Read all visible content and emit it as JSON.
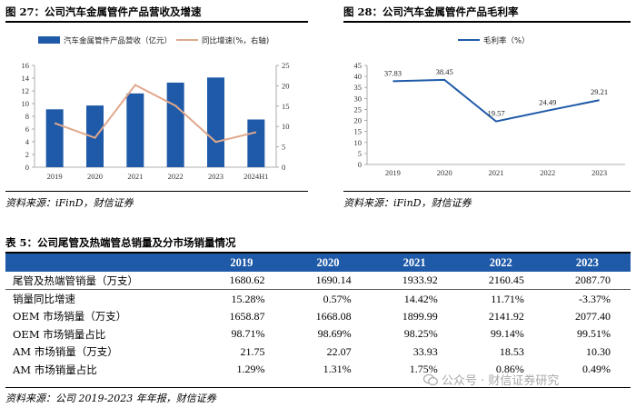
{
  "fig27": {
    "title": "图 27：公司汽车金属管件产品营收及增速",
    "source": "资料来源：iFinD，财信证券"
  },
  "fig28": {
    "title": "图 28：公司汽车金属管件产品毛利率",
    "source": "资料来源：iFinD，财信证券"
  },
  "table5": {
    "title": "表 5：公司尾管及热端管总销量及分市场销量情况",
    "header": [
      "",
      "2019",
      "2020",
      "2021",
      "2022",
      "2023"
    ],
    "rows": [
      [
        "尾管及热端管销量（万支）",
        "1680.62",
        "1690.14",
        "1933.92",
        "2160.45",
        "2087.70"
      ],
      [
        "销量同比增速",
        "15.28%",
        "0.57%",
        "14.42%",
        "11.71%",
        "-3.37%"
      ],
      [
        "OEM 市场销量（万支）",
        "1658.87",
        "1668.08",
        "1899.99",
        "2141.92",
        "2077.40"
      ],
      [
        "OEM 市场销量占比",
        "98.71%",
        "98.69%",
        "98.25%",
        "99.14%",
        "99.51%"
      ],
      [
        "AM 市场销量（万支）",
        "21.75",
        "22.07",
        "33.93",
        "18.53",
        "10.30"
      ],
      [
        "AM 市场销量占比",
        "1.29%",
        "1.31%",
        "1.75%",
        "0.86%",
        "0.49%"
      ]
    ],
    "source": "资料来源：公司 2019-2023 年年报，财信证券"
  },
  "watermark": "公众号 · 财信证券研究",
  "colors": {
    "bar": "#1f5aa8",
    "growth_line": "#e0a88c",
    "margin_line": "#1f5aa8",
    "header_bg": "#1f5aa8"
  },
  "chart_data": [
    {
      "type": "bar",
      "categories": [
        "2019",
        "2020",
        "2021",
        "2022",
        "2023",
        "2024H1"
      ],
      "series": [
        {
          "name": "汽车金属管件产品营收（亿元）",
          "type": "bar",
          "axis": "left",
          "values": [
            9.1,
            9.7,
            11.6,
            13.3,
            14.1,
            7.5
          ]
        },
        {
          "name": "同比增速(%，右轴)",
          "type": "line",
          "axis": "right",
          "values": [
            10.8,
            7.2,
            20.2,
            15.1,
            6.2,
            8.6
          ]
        }
      ],
      "ylim": [
        0,
        16
      ],
      "yticks": [
        "0",
        "2",
        "4",
        "6",
        "8",
        "10",
        "12",
        "14",
        "16"
      ],
      "y2lim": [
        0,
        25
      ],
      "y2ticks": [
        "0",
        "5",
        "10",
        "15",
        "20",
        "25"
      ],
      "grid": false,
      "legend": "top"
    },
    {
      "type": "line",
      "categories": [
        "2019",
        "2020",
        "2021",
        "2022",
        "2023"
      ],
      "series": [
        {
          "name": "毛利率（%）",
          "values": [
            37.83,
            38.45,
            19.57,
            24.49,
            29.21
          ],
          "labels": [
            "37.83",
            "38.45",
            "19.57",
            "24.49",
            "29.21"
          ]
        }
      ],
      "ylim": [
        0,
        45
      ],
      "yticks": [
        "0",
        "5",
        "10",
        "15",
        "20",
        "25",
        "30",
        "35",
        "40",
        "45"
      ],
      "grid": false,
      "legend": "top"
    }
  ]
}
